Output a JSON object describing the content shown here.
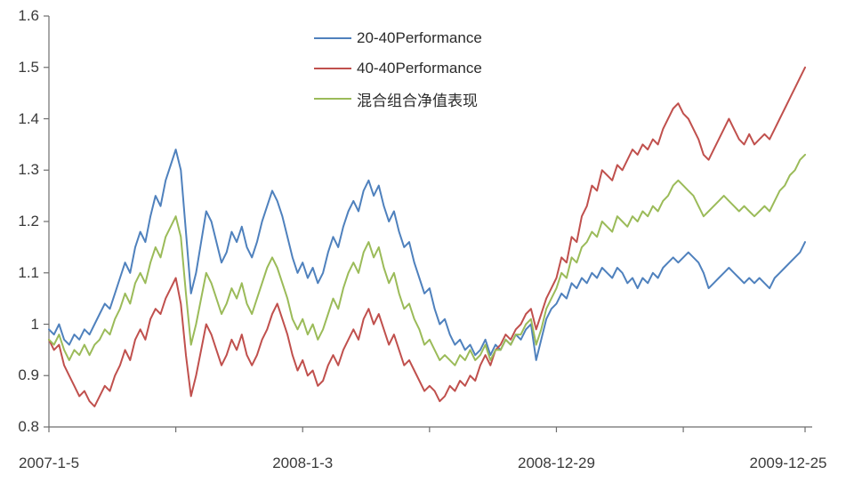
{
  "chart_data": {
    "type": "line",
    "title": "",
    "xlabel": "",
    "ylabel": "",
    "grid": false,
    "plot_background": "#ffffff",
    "axis_color": "#6e6e6e",
    "label_color": "#3a3a3a",
    "legend_position": "top-center-inside",
    "y_min": 0.8,
    "y_max": 1.6,
    "y_tick_labels": [
      "1.6",
      "1.5",
      "1.4",
      "1.3",
      "1.2",
      "1.1",
      "1",
      "0.9",
      "0.8"
    ],
    "y_tick_values": [
      1.6,
      1.5,
      1.4,
      1.3,
      1.2,
      1.1,
      1.0,
      0.9,
      0.8
    ],
    "x_labels": [
      {
        "text": "2007-1-5",
        "index": 0
      },
      {
        "text": "2008-1-3",
        "index": 50
      },
      {
        "text": "2008-12-29",
        "index": 100
      },
      {
        "text": "2009-12-25",
        "index": 149
      }
    ],
    "x_axis_tick_indices": [
      0,
      25,
      50,
      75,
      100,
      125,
      149
    ],
    "series": [
      {
        "name": "20-40Performance",
        "color": "#4F81BD",
        "values": [
          0.99,
          0.98,
          1.0,
          0.97,
          0.96,
          0.98,
          0.97,
          0.99,
          0.98,
          1.0,
          1.02,
          1.04,
          1.03,
          1.06,
          1.09,
          1.12,
          1.1,
          1.15,
          1.18,
          1.16,
          1.21,
          1.25,
          1.23,
          1.28,
          1.31,
          1.34,
          1.3,
          1.18,
          1.06,
          1.1,
          1.16,
          1.22,
          1.2,
          1.16,
          1.12,
          1.14,
          1.18,
          1.16,
          1.19,
          1.15,
          1.13,
          1.16,
          1.2,
          1.23,
          1.26,
          1.24,
          1.21,
          1.17,
          1.13,
          1.1,
          1.12,
          1.09,
          1.11,
          1.08,
          1.1,
          1.14,
          1.17,
          1.15,
          1.19,
          1.22,
          1.24,
          1.22,
          1.26,
          1.28,
          1.25,
          1.27,
          1.23,
          1.2,
          1.22,
          1.18,
          1.15,
          1.16,
          1.12,
          1.09,
          1.06,
          1.07,
          1.03,
          1.0,
          1.01,
          0.98,
          0.96,
          0.97,
          0.95,
          0.96,
          0.94,
          0.95,
          0.97,
          0.94,
          0.96,
          0.95,
          0.97,
          0.96,
          0.98,
          0.97,
          0.99,
          1.0,
          0.93,
          0.97,
          1.01,
          1.03,
          1.04,
          1.06,
          1.05,
          1.08,
          1.07,
          1.09,
          1.08,
          1.1,
          1.09,
          1.11,
          1.1,
          1.09,
          1.11,
          1.1,
          1.08,
          1.09,
          1.07,
          1.09,
          1.08,
          1.1,
          1.09,
          1.11,
          1.12,
          1.13,
          1.12,
          1.13,
          1.14,
          1.13,
          1.12,
          1.1,
          1.07,
          1.08,
          1.09,
          1.1,
          1.11,
          1.1,
          1.09,
          1.08,
          1.09,
          1.08,
          1.09,
          1.08,
          1.07,
          1.09,
          1.1,
          1.11,
          1.12,
          1.13,
          1.14,
          1.16
        ]
      },
      {
        "name": "40-40Performance",
        "color": "#C0504D",
        "values": [
          0.97,
          0.95,
          0.96,
          0.92,
          0.9,
          0.88,
          0.86,
          0.87,
          0.85,
          0.84,
          0.86,
          0.88,
          0.87,
          0.9,
          0.92,
          0.95,
          0.93,
          0.97,
          0.99,
          0.97,
          1.01,
          1.03,
          1.02,
          1.05,
          1.07,
          1.09,
          1.04,
          0.94,
          0.86,
          0.9,
          0.95,
          1.0,
          0.98,
          0.95,
          0.92,
          0.94,
          0.97,
          0.95,
          0.98,
          0.94,
          0.92,
          0.94,
          0.97,
          0.99,
          1.02,
          1.04,
          1.01,
          0.98,
          0.94,
          0.91,
          0.93,
          0.9,
          0.91,
          0.88,
          0.89,
          0.92,
          0.94,
          0.92,
          0.95,
          0.97,
          0.99,
          0.97,
          1.01,
          1.03,
          1.0,
          1.02,
          0.99,
          0.96,
          0.98,
          0.95,
          0.92,
          0.93,
          0.91,
          0.89,
          0.87,
          0.88,
          0.87,
          0.85,
          0.86,
          0.88,
          0.87,
          0.89,
          0.88,
          0.9,
          0.89,
          0.92,
          0.94,
          0.92,
          0.95,
          0.96,
          0.98,
          0.97,
          0.99,
          1.0,
          1.02,
          1.03,
          0.99,
          1.02,
          1.05,
          1.07,
          1.09,
          1.13,
          1.12,
          1.17,
          1.16,
          1.21,
          1.23,
          1.27,
          1.26,
          1.3,
          1.29,
          1.28,
          1.31,
          1.3,
          1.32,
          1.34,
          1.33,
          1.35,
          1.34,
          1.36,
          1.35,
          1.38,
          1.4,
          1.42,
          1.43,
          1.41,
          1.4,
          1.38,
          1.36,
          1.33,
          1.32,
          1.34,
          1.36,
          1.38,
          1.4,
          1.38,
          1.36,
          1.35,
          1.37,
          1.35,
          1.36,
          1.37,
          1.36,
          1.38,
          1.4,
          1.42,
          1.44,
          1.46,
          1.48,
          1.5
        ]
      },
      {
        "name": "混合组合净值表现",
        "color": "#9BBB59",
        "values": [
          0.97,
          0.96,
          0.98,
          0.95,
          0.93,
          0.95,
          0.94,
          0.96,
          0.94,
          0.96,
          0.97,
          0.99,
          0.98,
          1.01,
          1.03,
          1.06,
          1.04,
          1.08,
          1.1,
          1.08,
          1.12,
          1.15,
          1.13,
          1.17,
          1.19,
          1.21,
          1.17,
          1.06,
          0.96,
          1.0,
          1.05,
          1.1,
          1.08,
          1.05,
          1.02,
          1.04,
          1.07,
          1.05,
          1.08,
          1.04,
          1.02,
          1.05,
          1.08,
          1.11,
          1.13,
          1.11,
          1.08,
          1.05,
          1.01,
          0.99,
          1.01,
          0.98,
          1.0,
          0.97,
          0.99,
          1.02,
          1.05,
          1.03,
          1.07,
          1.1,
          1.12,
          1.1,
          1.14,
          1.16,
          1.13,
          1.15,
          1.11,
          1.08,
          1.1,
          1.06,
          1.03,
          1.04,
          1.01,
          0.99,
          0.96,
          0.97,
          0.95,
          0.93,
          0.94,
          0.93,
          0.92,
          0.94,
          0.93,
          0.95,
          0.93,
          0.94,
          0.96,
          0.93,
          0.95,
          0.95,
          0.97,
          0.96,
          0.98,
          0.98,
          1.0,
          1.01,
          0.96,
          0.99,
          1.03,
          1.05,
          1.07,
          1.1,
          1.09,
          1.13,
          1.12,
          1.15,
          1.16,
          1.18,
          1.17,
          1.2,
          1.19,
          1.18,
          1.21,
          1.2,
          1.19,
          1.21,
          1.2,
          1.22,
          1.21,
          1.23,
          1.22,
          1.24,
          1.25,
          1.27,
          1.28,
          1.27,
          1.26,
          1.25,
          1.23,
          1.21,
          1.22,
          1.23,
          1.24,
          1.25,
          1.24,
          1.23,
          1.22,
          1.23,
          1.22,
          1.21,
          1.22,
          1.23,
          1.22,
          1.24,
          1.26,
          1.27,
          1.29,
          1.3,
          1.32,
          1.33
        ]
      }
    ]
  }
}
